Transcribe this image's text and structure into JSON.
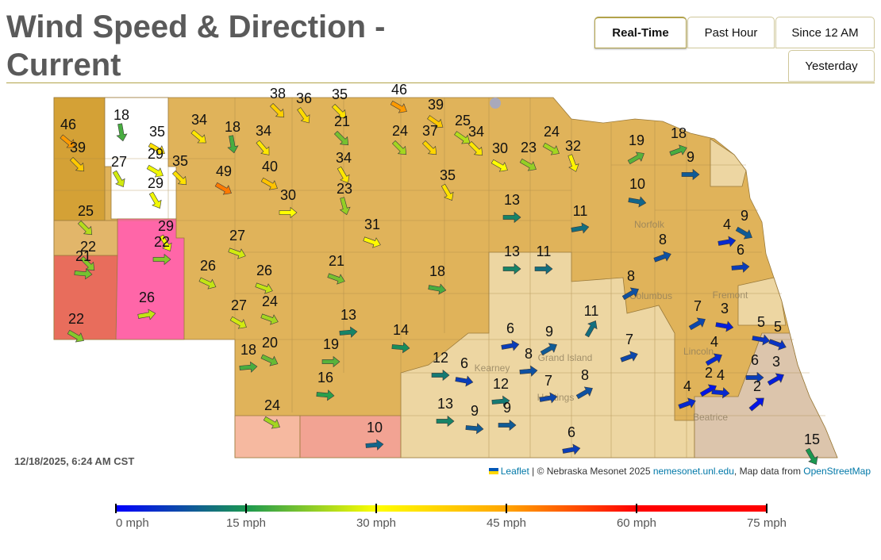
{
  "header": {
    "title": "Wind Speed & Direction - Current",
    "tabs": [
      "Real-Time",
      "Past Hour",
      "Since 12 AM",
      "Yesterday"
    ],
    "active_tab": 0
  },
  "map": {
    "type": "wind-map",
    "unit_mark": "arrow",
    "stations": [
      {
        "speed": 18,
        "dir": 80
      },
      {
        "speed": 46,
        "dir": 40
      },
      {
        "speed": 35,
        "dir": 30
      },
      {
        "speed": 39,
        "dir": 45
      },
      {
        "speed": 34,
        "dir": 40
      },
      {
        "speed": 18,
        "dir": 80
      },
      {
        "speed": 34,
        "dir": 50
      },
      {
        "speed": 38,
        "dir": 45
      },
      {
        "speed": 36,
        "dir": 55
      },
      {
        "speed": 35,
        "dir": 45
      },
      {
        "speed": 46,
        "dir": 30
      },
      {
        "speed": 39,
        "dir": 35
      },
      {
        "speed": 25,
        "dir": 35
      },
      {
        "speed": 34,
        "dir": 45
      },
      {
        "speed": 24,
        "dir": 30
      },
      {
        "speed": 21,
        "dir": 45
      },
      {
        "speed": 24,
        "dir": 45
      },
      {
        "speed": 37,
        "dir": 45
      },
      {
        "speed": 29,
        "dir": 30
      },
      {
        "speed": 27,
        "dir": 60
      },
      {
        "speed": 35,
        "dir": 45
      },
      {
        "speed": 49,
        "dir": 30
      },
      {
        "speed": 40,
        "dir": 30
      },
      {
        "speed": 34,
        "dir": 60
      },
      {
        "speed": 30,
        "dir": 30
      },
      {
        "speed": 23,
        "dir": 30
      },
      {
        "speed": 32,
        "dir": 70
      },
      {
        "speed": 19,
        "dir": -30
      },
      {
        "speed": 18,
        "dir": -20
      },
      {
        "speed": 9,
        "dir": 0
      },
      {
        "speed": 29,
        "dir": 60
      },
      {
        "speed": 23,
        "dir": 75
      },
      {
        "speed": 35,
        "dir": 60
      },
      {
        "speed": 30,
        "dir": 0
      },
      {
        "speed": 10,
        "dir": 10
      },
      {
        "speed": 13,
        "dir": 0
      },
      {
        "speed": 11,
        "dir": -10
      },
      {
        "speed": 25,
        "dir": 45
      },
      {
        "speed": 29,
        "dir": 60
      },
      {
        "speed": 4,
        "dir": -10
      },
      {
        "speed": 9,
        "dir": 30
      },
      {
        "speed": 31,
        "dir": 20
      },
      {
        "speed": 22,
        "dir": 45
      },
      {
        "speed": 22,
        "dir": 0
      },
      {
        "speed": 27,
        "dir": 20
      },
      {
        "speed": 8,
        "dir": -20
      },
      {
        "speed": 6,
        "dir": -5
      },
      {
        "speed": 21,
        "dir": 5
      },
      {
        "speed": 13,
        "dir": 0
      },
      {
        "speed": 11,
        "dir": 0
      },
      {
        "speed": 26,
        "dir": 25
      },
      {
        "speed": 26,
        "dir": 20
      },
      {
        "speed": 21,
        "dir": 20
      },
      {
        "speed": 18,
        "dir": 10
      },
      {
        "speed": 8,
        "dir": -30
      },
      {
        "speed": 26,
        "dir": -10
      },
      {
        "speed": 27,
        "dir": 30
      },
      {
        "speed": 24,
        "dir": 20
      },
      {
        "speed": 13,
        "dir": -5
      },
      {
        "speed": 11,
        "dir": -60
      },
      {
        "speed": 7,
        "dir": -30
      },
      {
        "speed": 3,
        "dir": 10
      },
      {
        "speed": 5,
        "dir": 10
      },
      {
        "speed": 5,
        "dir": 20
      },
      {
        "speed": 22,
        "dir": 30
      },
      {
        "speed": 18,
        "dir": -5
      },
      {
        "speed": 20,
        "dir": 25
      },
      {
        "speed": 19,
        "dir": 0
      },
      {
        "speed": 14,
        "dir": 5
      },
      {
        "speed": 6,
        "dir": -10
      },
      {
        "speed": 9,
        "dir": -30
      },
      {
        "speed": 7,
        "dir": -20
      },
      {
        "speed": 4,
        "dir": -30
      },
      {
        "speed": 6,
        "dir": 0
      },
      {
        "speed": 3,
        "dir": -30
      },
      {
        "speed": 12,
        "dir": 0
      },
      {
        "speed": 6,
        "dir": 10
      },
      {
        "speed": 8,
        "dir": -5
      },
      {
        "speed": 7,
        "dir": -10
      },
      {
        "speed": 2,
        "dir": -30
      },
      {
        "speed": 4,
        "dir": 5
      },
      {
        "speed": 8,
        "dir": -30
      },
      {
        "speed": 16,
        "dir": 5
      },
      {
        "speed": 12,
        "dir": -5
      },
      {
        "speed": 13,
        "dir": 0
      },
      {
        "speed": 9,
        "dir": 5
      },
      {
        "speed": 9,
        "dir": 0
      },
      {
        "speed": 4,
        "dir": -20
      },
      {
        "speed": 2,
        "dir": -40
      },
      {
        "speed": 24,
        "dir": 30
      },
      {
        "speed": 10,
        "dir": -5
      },
      {
        "speed": 6,
        "dir": -10
      },
      {
        "speed": 15,
        "dir": 60
      }
    ],
    "places": [
      "Norfolk",
      "Columbus",
      "Fremont",
      "Grand Island",
      "Kearney",
      "Hastings",
      "Lincoln",
      "Beatrice"
    ],
    "timestamp": "12/18/2025, 6:24 AM CST",
    "attribution": [
      "Leaflet",
      " | © Nebraska Mesonet 2025 ",
      "nemesonet.unl.edu",
      ", Map data from ",
      "OpenStreetMap"
    ]
  },
  "legend": {
    "range": [
      0,
      75
    ],
    "ticks": [
      {
        "value": 0,
        "label": "0 mph"
      },
      {
        "value": 15,
        "label": "15 mph"
      },
      {
        "value": 30,
        "label": "30 mph"
      },
      {
        "value": 45,
        "label": "45 mph"
      },
      {
        "value": 60,
        "label": "60 mph"
      },
      {
        "value": 75,
        "label": "75 mph"
      }
    ],
    "colors": [
      "#0000ff",
      "#1a9850",
      "#ffff00",
      "#ffa500",
      "#ff0000",
      "#ff0000"
    ]
  }
}
